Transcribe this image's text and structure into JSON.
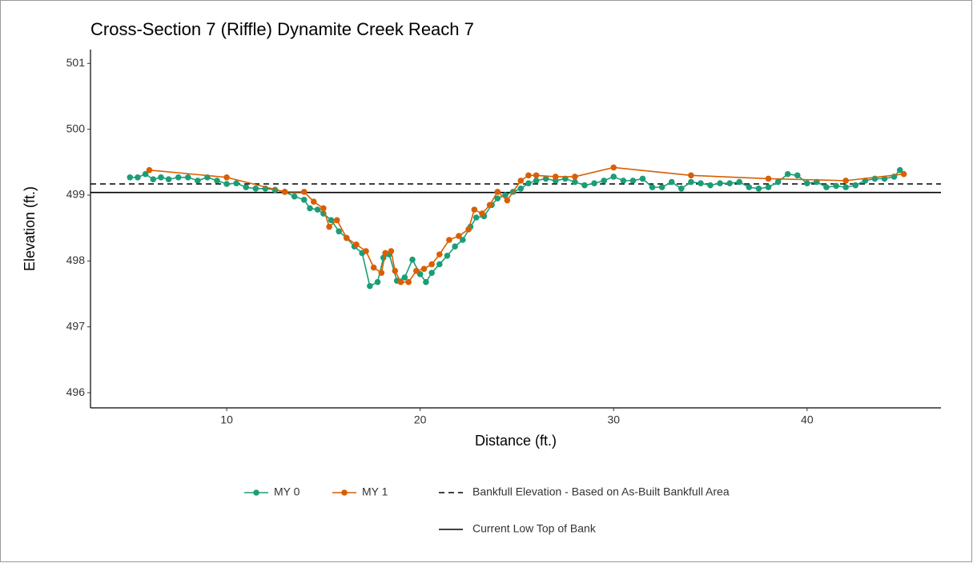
{
  "chart_data": {
    "type": "line",
    "title": "Cross-Section 7 (Riffle) Dynamite Creek Reach 7",
    "x_label": "Distance (ft.)",
    "y_label": "Elevation (ft.)",
    "xlim": [
      2.96,
      46.92
    ],
    "xticks": [
      10,
      20,
      30,
      40
    ],
    "ylim": [
      495.77,
      501.21
    ],
    "yticks": [
      496,
      497,
      498,
      499,
      500,
      501
    ],
    "grid": false,
    "series": [
      {
        "name": "MY 0",
        "color": "#1b9e77",
        "x": [
          5.0,
          5.4,
          5.8,
          6.2,
          6.6,
          7.0,
          7.5,
          8.0,
          8.5,
          9.0,
          9.5,
          10.0,
          10.5,
          11.0,
          11.5,
          12.0,
          12.5,
          13.0,
          13.5,
          14.0,
          14.3,
          14.7,
          15.0,
          15.4,
          15.8,
          16.2,
          16.6,
          17.0,
          17.4,
          17.8,
          18.1,
          18.4,
          18.8,
          19.2,
          19.6,
          20.0,
          20.3,
          20.6,
          21.0,
          21.4,
          21.8,
          22.2,
          22.6,
          22.9,
          23.3,
          23.7,
          24.0,
          24.4,
          24.8,
          25.2,
          25.6,
          26.0,
          26.5,
          27.0,
          27.5,
          28.0,
          28.5,
          29.0,
          29.5,
          30.0,
          30.5,
          31.0,
          31.5,
          32.0,
          32.5,
          33.0,
          33.5,
          34.0,
          34.5,
          35.0,
          35.5,
          36.0,
          36.5,
          37.0,
          37.5,
          38.0,
          38.5,
          39.0,
          39.5,
          40.0,
          40.5,
          41.0,
          41.5,
          42.0,
          42.5,
          43.0,
          43.5,
          44.0,
          44.5,
          44.8
        ],
        "values": [
          499.27,
          499.27,
          499.32,
          499.24,
          499.27,
          499.24,
          499.27,
          499.27,
          499.22,
          499.27,
          499.22,
          499.17,
          499.18,
          499.12,
          499.1,
          499.1,
          499.08,
          499.05,
          498.98,
          498.93,
          498.8,
          498.78,
          498.72,
          498.62,
          498.45,
          498.35,
          498.22,
          498.12,
          497.62,
          497.68,
          498.05,
          498.1,
          497.7,
          497.75,
          498.02,
          497.8,
          497.68,
          497.82,
          497.95,
          498.08,
          498.22,
          498.32,
          498.52,
          498.66,
          498.68,
          498.85,
          498.95,
          499.0,
          499.05,
          499.1,
          499.18,
          499.22,
          499.25,
          499.22,
          499.25,
          499.2,
          499.15,
          499.18,
          499.22,
          499.28,
          499.22,
          499.22,
          499.25,
          499.12,
          499.12,
          499.2,
          499.1,
          499.2,
          499.18,
          499.15,
          499.18,
          499.18,
          499.2,
          499.12,
          499.1,
          499.12,
          499.2,
          499.32,
          499.3,
          499.18,
          499.2,
          499.12,
          499.14,
          499.12,
          499.15,
          499.22,
          499.25,
          499.25,
          499.28,
          499.38
        ]
      },
      {
        "name": "MY 1",
        "color": "#d95f02",
        "x": [
          6.0,
          10.0,
          13.0,
          14.0,
          14.5,
          15.0,
          15.3,
          15.7,
          16.2,
          16.7,
          17.2,
          17.6,
          18.0,
          18.2,
          18.5,
          18.7,
          19.0,
          19.4,
          19.8,
          20.2,
          20.6,
          21.0,
          21.5,
          22.0,
          22.5,
          22.8,
          23.2,
          23.6,
          24.0,
          24.5,
          25.2,
          25.6,
          26.0,
          27.0,
          28.0,
          30.0,
          34.0,
          38.0,
          42.0,
          45.0
        ],
        "values": [
          499.38,
          499.27,
          499.05,
          499.05,
          498.9,
          498.8,
          498.52,
          498.62,
          498.35,
          498.25,
          498.15,
          497.9,
          497.82,
          498.12,
          498.15,
          497.85,
          497.68,
          497.68,
          497.85,
          497.88,
          497.95,
          498.1,
          498.32,
          498.38,
          498.48,
          498.78,
          498.72,
          498.85,
          499.05,
          498.92,
          499.22,
          499.3,
          499.3,
          499.28,
          499.28,
          499.42,
          499.3,
          499.25,
          499.22,
          499.32
        ]
      }
    ],
    "reference_lines": [
      {
        "name": "Bankfull Elevation - Based on As-Built Bankfull Area",
        "value": 499.17,
        "style": "dashed",
        "color": "#000000"
      },
      {
        "name": "Current Low Top of Bank",
        "value": 499.04,
        "style": "solid",
        "color": "#000000"
      }
    ]
  }
}
